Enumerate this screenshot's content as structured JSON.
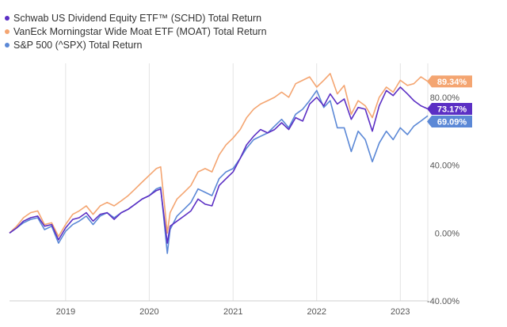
{
  "legend": [
    {
      "label": "Schwab US Dividend Equity ETF™ (SCHD) Total Return",
      "color": "#5b2fc4"
    },
    {
      "label": "VanEck Morningstar Wide Moat ETF (MOAT) Total Return",
      "color": "#f4a571"
    },
    {
      "label": "S&P 500 (^SPX) Total Return",
      "color": "#5b88d6"
    }
  ],
  "chart_data": {
    "type": "line",
    "title": "",
    "xlabel": "",
    "ylabel": "",
    "x_ticks": [
      "2019",
      "2020",
      "2021",
      "2022",
      "2023"
    ],
    "y_ticks": [
      "-40.00%",
      "0.00%",
      "40.00%",
      "80.00%"
    ],
    "ylim": [
      -40,
      100
    ],
    "y_axis_position": "right",
    "grid": "vertical",
    "legend_position": "top-left",
    "series": [
      {
        "name": "Schwab US Dividend Equity ETF™ (SCHD) Total Return",
        "color": "#5b2fc4",
        "end_label": "73.17%",
        "points": [
          [
            "2018-05",
            0
          ],
          [
            "2018-06",
            3
          ],
          [
            "2018-07",
            7
          ],
          [
            "2018-08",
            9
          ],
          [
            "2018-09",
            10
          ],
          [
            "2018-10",
            4
          ],
          [
            "2018-11",
            5
          ],
          [
            "2018-12",
            -4
          ],
          [
            "2019-01",
            3
          ],
          [
            "2019-02",
            8
          ],
          [
            "2019-03",
            9
          ],
          [
            "2019-04",
            12
          ],
          [
            "2019-05",
            7
          ],
          [
            "2019-06",
            11
          ],
          [
            "2019-07",
            12
          ],
          [
            "2019-08",
            8
          ],
          [
            "2019-09",
            12
          ],
          [
            "2019-10",
            14
          ],
          [
            "2019-11",
            17
          ],
          [
            "2019-12",
            20
          ],
          [
            "2020-01",
            22
          ],
          [
            "2020-02",
            25
          ],
          [
            "2020-02-20",
            26
          ],
          [
            "2020-03-20",
            -6
          ],
          [
            "2020-04",
            4
          ],
          [
            "2020-05",
            7
          ],
          [
            "2020-06",
            10
          ],
          [
            "2020-07",
            13
          ],
          [
            "2020-08",
            20
          ],
          [
            "2020-09",
            17
          ],
          [
            "2020-10",
            16
          ],
          [
            "2020-11",
            28
          ],
          [
            "2020-12",
            32
          ],
          [
            "2021-01",
            36
          ],
          [
            "2021-02",
            44
          ],
          [
            "2021-03",
            52
          ],
          [
            "2021-04",
            57
          ],
          [
            "2021-05",
            61
          ],
          [
            "2021-06",
            59
          ],
          [
            "2021-07",
            61
          ],
          [
            "2021-08",
            65
          ],
          [
            "2021-09",
            61
          ],
          [
            "2021-10",
            68
          ],
          [
            "2021-11",
            66
          ],
          [
            "2021-12",
            76
          ],
          [
            "2022-01",
            80
          ],
          [
            "2022-02",
            75
          ],
          [
            "2022-03",
            82
          ],
          [
            "2022-04",
            76
          ],
          [
            "2022-05",
            79
          ],
          [
            "2022-06",
            67
          ],
          [
            "2022-07",
            74
          ],
          [
            "2022-08",
            73
          ],
          [
            "2022-09",
            60
          ],
          [
            "2022-10",
            75
          ],
          [
            "2022-11",
            84
          ],
          [
            "2022-12",
            81
          ],
          [
            "2023-01",
            86
          ],
          [
            "2023-02",
            82
          ],
          [
            "2023-03",
            78
          ],
          [
            "2023-04",
            75
          ],
          [
            "2023-05",
            73.17
          ]
        ]
      },
      {
        "name": "VanEck Morningstar Wide Moat ETF (MOAT) Total Return",
        "color": "#f4a571",
        "end_label": "89.34%",
        "points": [
          [
            "2018-05",
            0
          ],
          [
            "2018-06",
            4
          ],
          [
            "2018-07",
            9
          ],
          [
            "2018-08",
            12
          ],
          [
            "2018-09",
            13
          ],
          [
            "2018-10",
            5
          ],
          [
            "2018-11",
            6
          ],
          [
            "2018-12",
            -2
          ],
          [
            "2019-01",
            5
          ],
          [
            "2019-02",
            11
          ],
          [
            "2019-03",
            13
          ],
          [
            "2019-04",
            16
          ],
          [
            "2019-05",
            11
          ],
          [
            "2019-06",
            16
          ],
          [
            "2019-07",
            18
          ],
          [
            "2019-08",
            16
          ],
          [
            "2019-09",
            19
          ],
          [
            "2019-10",
            22
          ],
          [
            "2019-11",
            26
          ],
          [
            "2019-12",
            30
          ],
          [
            "2020-01",
            34
          ],
          [
            "2020-02",
            38
          ],
          [
            "2020-02-20",
            39
          ],
          [
            "2020-03-20",
            0
          ],
          [
            "2020-04",
            12
          ],
          [
            "2020-05",
            20
          ],
          [
            "2020-06",
            24
          ],
          [
            "2020-07",
            28
          ],
          [
            "2020-08",
            36
          ],
          [
            "2020-09",
            38
          ],
          [
            "2020-10",
            36
          ],
          [
            "2020-11",
            46
          ],
          [
            "2020-12",
            52
          ],
          [
            "2021-01",
            56
          ],
          [
            "2021-02",
            61
          ],
          [
            "2021-03",
            68
          ],
          [
            "2021-04",
            73
          ],
          [
            "2021-05",
            76
          ],
          [
            "2021-06",
            78
          ],
          [
            "2021-07",
            80
          ],
          [
            "2021-08",
            83
          ],
          [
            "2021-09",
            80
          ],
          [
            "2021-10",
            88
          ],
          [
            "2021-11",
            90
          ],
          [
            "2021-12",
            92
          ],
          [
            "2022-01",
            86
          ],
          [
            "2022-02",
            90
          ],
          [
            "2022-03",
            94
          ],
          [
            "2022-04",
            82
          ],
          [
            "2022-05",
            87
          ],
          [
            "2022-06",
            70
          ],
          [
            "2022-07",
            78
          ],
          [
            "2022-08",
            75
          ],
          [
            "2022-09",
            68
          ],
          [
            "2022-10",
            80
          ],
          [
            "2022-11",
            86
          ],
          [
            "2022-12",
            83
          ],
          [
            "2023-01",
            90
          ],
          [
            "2023-02",
            87
          ],
          [
            "2023-03",
            88
          ],
          [
            "2023-04",
            92
          ],
          [
            "2023-05",
            89.34
          ]
        ]
      },
      {
        "name": "S&P 500 (^SPX) Total Return",
        "color": "#5b88d6",
        "end_label": "69.09%",
        "points": [
          [
            "2018-05",
            0
          ],
          [
            "2018-06",
            3
          ],
          [
            "2018-07",
            6
          ],
          [
            "2018-08",
            8
          ],
          [
            "2018-09",
            9
          ],
          [
            "2018-10",
            2
          ],
          [
            "2018-11",
            4
          ],
          [
            "2018-12",
            -6
          ],
          [
            "2019-01",
            1
          ],
          [
            "2019-02",
            5
          ],
          [
            "2019-03",
            7
          ],
          [
            "2019-04",
            10
          ],
          [
            "2019-05",
            5
          ],
          [
            "2019-06",
            10
          ],
          [
            "2019-07",
            12
          ],
          [
            "2019-08",
            9
          ],
          [
            "2019-09",
            12
          ],
          [
            "2019-10",
            14
          ],
          [
            "2019-11",
            17
          ],
          [
            "2019-12",
            20
          ],
          [
            "2020-01",
            22
          ],
          [
            "2020-02",
            26
          ],
          [
            "2020-02-20",
            27
          ],
          [
            "2020-03-20",
            -12
          ],
          [
            "2020-04",
            2
          ],
          [
            "2020-05",
            10
          ],
          [
            "2020-06",
            14
          ],
          [
            "2020-07",
            18
          ],
          [
            "2020-08",
            26
          ],
          [
            "2020-09",
            24
          ],
          [
            "2020-10",
            22
          ],
          [
            "2020-11",
            32
          ],
          [
            "2020-12",
            36
          ],
          [
            "2021-01",
            38
          ],
          [
            "2021-02",
            44
          ],
          [
            "2021-03",
            50
          ],
          [
            "2021-04",
            55
          ],
          [
            "2021-05",
            57
          ],
          [
            "2021-06",
            59
          ],
          [
            "2021-07",
            63
          ],
          [
            "2021-08",
            67
          ],
          [
            "2021-09",
            62
          ],
          [
            "2021-10",
            70
          ],
          [
            "2021-11",
            73
          ],
          [
            "2021-12",
            78
          ],
          [
            "2022-01",
            84
          ],
          [
            "2022-02",
            74
          ],
          [
            "2022-03",
            78
          ],
          [
            "2022-04",
            62
          ],
          [
            "2022-05",
            62
          ],
          [
            "2022-06",
            48
          ],
          [
            "2022-07",
            60
          ],
          [
            "2022-08",
            55
          ],
          [
            "2022-09",
            42
          ],
          [
            "2022-10",
            53
          ],
          [
            "2022-11",
            60
          ],
          [
            "2022-12",
            55
          ],
          [
            "2023-01",
            62
          ],
          [
            "2023-02",
            58
          ],
          [
            "2023-03",
            63
          ],
          [
            "2023-04",
            66
          ],
          [
            "2023-05",
            69.09
          ]
        ]
      }
    ]
  }
}
